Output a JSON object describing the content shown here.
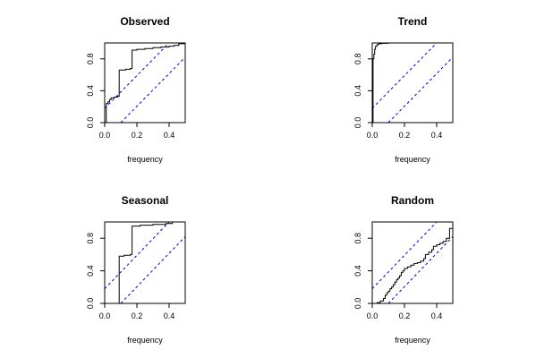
{
  "chart_data": [
    {
      "type": "line",
      "title": "Observed",
      "xlabel": "frequency",
      "ylabel": "",
      "xlim": [
        0,
        0.5
      ],
      "ylim": [
        0,
        1
      ],
      "xticks": [
        0.0,
        0.2,
        0.4
      ],
      "xtick_labels": [
        "0.0",
        "0.2",
        "0.4"
      ],
      "yticks": [
        0.0,
        0.4,
        0.8
      ],
      "ytick_labels": [
        "0.0",
        "0.4",
        "0.8"
      ],
      "band_offset": 0.18,
      "grid": false,
      "series": [
        {
          "step": true,
          "x": [
            0,
            0.01,
            0.02,
            0.03,
            0.04,
            0.06,
            0.08,
            0.09,
            0.1,
            0.13,
            0.16,
            0.17,
            0.2,
            0.25,
            0.3,
            0.35,
            0.4,
            0.43,
            0.46,
            0.5
          ],
          "y": [
            0.0,
            0.24,
            0.26,
            0.29,
            0.31,
            0.32,
            0.33,
            0.66,
            0.66,
            0.67,
            0.68,
            0.91,
            0.92,
            0.93,
            0.94,
            0.95,
            0.96,
            0.97,
            0.99,
            1.0
          ]
        },
        {
          "x": [
            0,
            0.4
          ],
          "y": [
            0.18,
            1.0
          ]
        },
        {
          "x": [
            0.1,
            0.5
          ],
          "y": [
            0.0,
            0.82
          ]
        }
      ],
      "colors": {
        "series": "#000000",
        "band": "#0000cc"
      }
    },
    {
      "type": "line",
      "title": "Trend",
      "xlabel": "frequency",
      "ylabel": "",
      "xlim": [
        0,
        0.5
      ],
      "ylim": [
        0,
        1
      ],
      "xticks": [
        0.0,
        0.2,
        0.4
      ],
      "xtick_labels": [
        "0.0",
        "0.2",
        "0.4"
      ],
      "yticks": [
        0.0,
        0.4,
        0.8
      ],
      "ytick_labels": [
        "0.0",
        "0.4",
        "0.8"
      ],
      "band_offset": 0.18,
      "grid": false,
      "series": [
        {
          "step": true,
          "x": [
            0,
            0.005,
            0.01,
            0.015,
            0.02,
            0.03,
            0.04,
            0.06,
            0.1,
            0.5
          ],
          "y": [
            0.0,
            0.8,
            0.86,
            0.92,
            0.96,
            0.98,
            0.99,
            0.995,
            1.0,
            1.0
          ]
        },
        {
          "x": [
            0,
            0.4
          ],
          "y": [
            0.18,
            1.0
          ]
        },
        {
          "x": [
            0.1,
            0.5
          ],
          "y": [
            0.0,
            0.82
          ]
        }
      ],
      "colors": {
        "series": "#000000",
        "band": "#0000cc"
      }
    },
    {
      "type": "line",
      "title": "Seasonal",
      "xlabel": "frequency",
      "ylabel": "",
      "xlim": [
        0,
        0.5
      ],
      "ylim": [
        0,
        1
      ],
      "xticks": [
        0.0,
        0.2,
        0.4
      ],
      "xtick_labels": [
        "0.0",
        "0.2",
        "0.4"
      ],
      "yticks": [
        0.0,
        0.4,
        0.8
      ],
      "ytick_labels": [
        "0.0",
        "0.4",
        "0.8"
      ],
      "band_offset": 0.18,
      "grid": false,
      "series": [
        {
          "step": true,
          "x": [
            0,
            0.08,
            0.09,
            0.12,
            0.16,
            0.17,
            0.22,
            0.3,
            0.38,
            0.42,
            0.5
          ],
          "y": [
            0.0,
            0.0,
            0.58,
            0.59,
            0.6,
            0.95,
            0.96,
            0.97,
            0.98,
            1.0,
            1.0
          ]
        },
        {
          "x": [
            0,
            0.4
          ],
          "y": [
            0.18,
            1.0
          ]
        },
        {
          "x": [
            0.1,
            0.5
          ],
          "y": [
            0.0,
            0.82
          ]
        }
      ],
      "colors": {
        "series": "#000000",
        "band": "#0000cc"
      }
    },
    {
      "type": "line",
      "title": "Random",
      "xlabel": "frequency",
      "ylabel": "",
      "xlim": [
        0,
        0.5
      ],
      "ylim": [
        0,
        1
      ],
      "xticks": [
        0.0,
        0.2,
        0.4
      ],
      "xtick_labels": [
        "0.0",
        "0.2",
        "0.4"
      ],
      "yticks": [
        0.0,
        0.4,
        0.8
      ],
      "ytick_labels": [
        "0.0",
        "0.4",
        "0.8"
      ],
      "band_offset": 0.18,
      "grid": false,
      "series": [
        {
          "step": true,
          "x": [
            0,
            0.03,
            0.05,
            0.07,
            0.08,
            0.09,
            0.1,
            0.11,
            0.12,
            0.13,
            0.14,
            0.15,
            0.16,
            0.17,
            0.18,
            0.19,
            0.2,
            0.22,
            0.24,
            0.26,
            0.28,
            0.3,
            0.32,
            0.33,
            0.35,
            0.37,
            0.38,
            0.4,
            0.42,
            0.44,
            0.46,
            0.48,
            0.5
          ],
          "y": [
            0.0,
            0.01,
            0.03,
            0.06,
            0.1,
            0.13,
            0.15,
            0.18,
            0.2,
            0.23,
            0.26,
            0.29,
            0.31,
            0.34,
            0.38,
            0.4,
            0.43,
            0.45,
            0.47,
            0.49,
            0.5,
            0.52,
            0.55,
            0.6,
            0.63,
            0.66,
            0.7,
            0.72,
            0.74,
            0.76,
            0.8,
            0.92,
            1.0
          ]
        },
        {
          "x": [
            0,
            0.4
          ],
          "y": [
            0.18,
            1.0
          ]
        },
        {
          "x": [
            0.1,
            0.5
          ],
          "y": [
            0.0,
            0.82
          ]
        }
      ],
      "colors": {
        "series": "#000000",
        "band": "#0000cc"
      }
    }
  ]
}
